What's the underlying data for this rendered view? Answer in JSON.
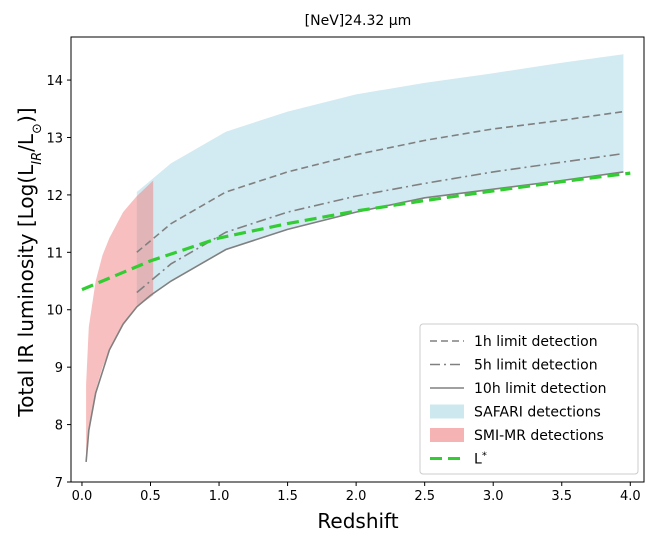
{
  "chart_data": {
    "type": "area",
    "title": "[NeV]24.32 μm",
    "xlabel": "Redshift",
    "ylabel": "Total IR luminosity [Log(L_IR/L⊙)]",
    "xlim": [
      -0.08,
      4.1
    ],
    "ylim": [
      7,
      14.75
    ],
    "x_ticks": [
      "0.0",
      "0.5",
      "1.0",
      "1.5",
      "2.0",
      "2.5",
      "3.0",
      "3.5",
      "4.0"
    ],
    "x_tick_values": [
      0.0,
      0.5,
      1.0,
      1.5,
      2.0,
      2.5,
      3.0,
      3.5,
      4.0
    ],
    "y_ticks": [
      "7",
      "8",
      "9",
      "10",
      "11",
      "12",
      "13",
      "14"
    ],
    "y_tick_values": [
      7,
      8,
      9,
      10,
      11,
      12,
      13,
      14
    ],
    "grid": false,
    "legend_position": "lower-right",
    "colors": {
      "limit_lines": "#808080",
      "safari_fill": "#add8e6",
      "smi_fill": "#f08080",
      "lstar": "#32cd32"
    },
    "series": [
      {
        "name": "1h limit detection",
        "style": "dashed",
        "x": [
          0.4,
          0.65,
          1.05,
          1.5,
          2.0,
          2.5,
          3.0,
          3.5,
          3.95
        ],
        "y": [
          11.0,
          11.5,
          12.05,
          12.4,
          12.7,
          12.95,
          13.15,
          13.3,
          13.45
        ]
      },
      {
        "name": "5h limit detection",
        "style": "dashdot",
        "x": [
          0.4,
          0.65,
          1.05,
          1.5,
          2.0,
          2.5,
          3.0,
          3.5,
          3.95
        ],
        "y": [
          10.3,
          10.8,
          11.35,
          11.7,
          11.98,
          12.2,
          12.4,
          12.57,
          12.72
        ]
      },
      {
        "name": "10h limit detection",
        "style": "solid",
        "x": [
          0.03,
          0.05,
          0.1,
          0.2,
          0.3,
          0.4,
          0.5,
          0.65,
          1.05,
          1.5,
          2.0,
          2.5,
          3.0,
          3.5,
          3.95
        ],
        "y": [
          7.35,
          7.9,
          8.55,
          9.3,
          9.75,
          10.05,
          10.25,
          10.5,
          11.05,
          11.4,
          11.7,
          11.95,
          12.1,
          12.25,
          12.4
        ]
      },
      {
        "name": "SAFARI detections",
        "style": "band",
        "x": [
          0.4,
          0.65,
          1.05,
          1.5,
          2.0,
          2.5,
          3.0,
          3.5,
          3.95
        ],
        "y_low": [
          10.05,
          10.5,
          11.05,
          11.4,
          11.7,
          11.95,
          12.1,
          12.25,
          12.4
        ],
        "y_high": [
          12.05,
          12.55,
          13.1,
          13.45,
          13.75,
          13.95,
          14.12,
          14.3,
          14.45
        ]
      },
      {
        "name": "SMI-MR detections",
        "style": "band",
        "x": [
          0.03,
          0.05,
          0.1,
          0.15,
          0.2,
          0.3,
          0.4,
          0.52
        ],
        "y_low": [
          7.4,
          7.95,
          8.6,
          9.0,
          9.3,
          9.75,
          10.05,
          10.25
        ],
        "y_high": [
          8.7,
          9.7,
          10.5,
          10.95,
          11.25,
          11.7,
          11.98,
          12.25
        ]
      },
      {
        "name": "L*",
        "style": "dashed-thick",
        "x": [
          0.0,
          0.5,
          1.0,
          1.5,
          2.0,
          2.5,
          3.0,
          3.5,
          4.0
        ],
        "y": [
          10.35,
          10.85,
          11.25,
          11.5,
          11.72,
          11.9,
          12.07,
          12.23,
          12.38
        ]
      }
    ]
  }
}
